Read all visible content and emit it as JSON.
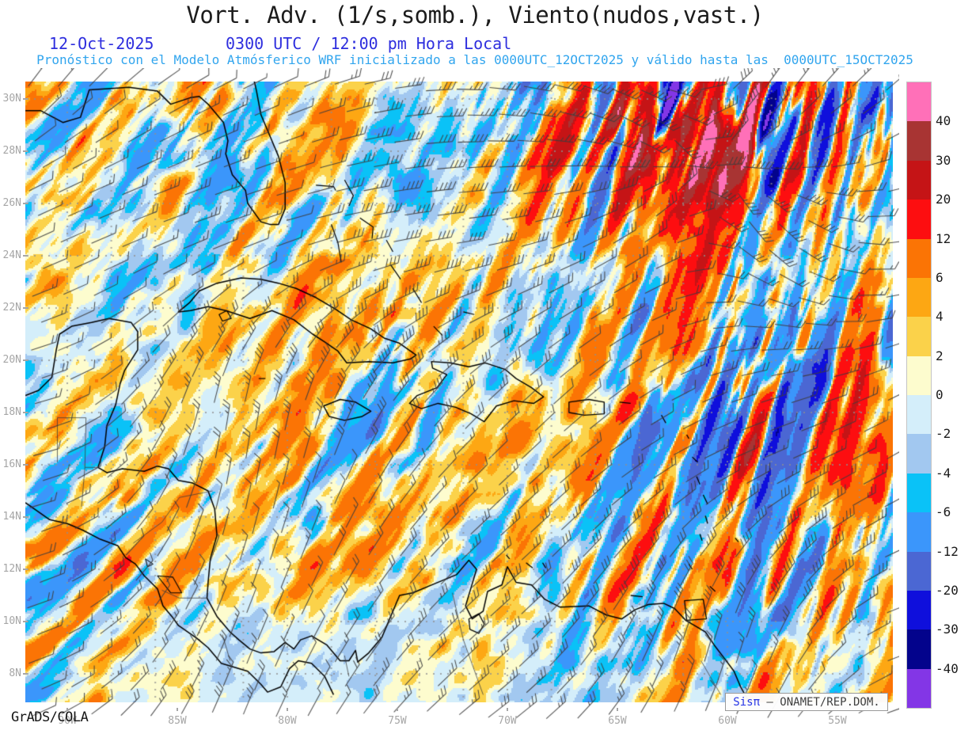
{
  "title": "Vort. Adv. (1/s,somb.), Viento(nudos,vast.)",
  "header": {
    "date": "12-Oct-2025",
    "time": "0300 UTC / 12:00 pm Hora Local",
    "subtitle": "Pronóstico con el Modelo Atmósferico WRF inicializado a las 0000UTC_12OCT2025 y válido hasta las  0000UTC_15OCT2025"
  },
  "axes": {
    "lat_ticks": [
      {
        "label": "30N",
        "lat": 30
      },
      {
        "label": "28N",
        "lat": 28
      },
      {
        "label": "26N",
        "lat": 26
      },
      {
        "label": "24N",
        "lat": 24
      },
      {
        "label": "22N",
        "lat": 22
      },
      {
        "label": "20N",
        "lat": 20
      },
      {
        "label": "18N",
        "lat": 18
      },
      {
        "label": "16N",
        "lat": 16
      },
      {
        "label": "14N",
        "lat": 14
      },
      {
        "label": "12N",
        "lat": 12
      },
      {
        "label": "10N",
        "lat": 10
      },
      {
        "label": "8N",
        "lat": 8
      }
    ],
    "lon_ticks": [
      {
        "label": "90W",
        "lon": 90
      },
      {
        "label": "85W",
        "lon": 85
      },
      {
        "label": "80W",
        "lon": 80
      },
      {
        "label": "75W",
        "lon": 75
      },
      {
        "label": "70W",
        "lon": 70
      },
      {
        "label": "65W",
        "lon": 65
      },
      {
        "label": "60W",
        "lon": 60
      },
      {
        "label": "55W",
        "lon": 55
      }
    ]
  },
  "colorbar": {
    "segments": [
      {
        "color": "#ff70b8",
        "boundary_label": "40"
      },
      {
        "color": "#a83433",
        "boundary_label": "30"
      },
      {
        "color": "#c51416",
        "boundary_label": "20"
      },
      {
        "color": "#fd0e10",
        "boundary_label": "12"
      },
      {
        "color": "#fb7405",
        "boundary_label": "6"
      },
      {
        "color": "#fda713",
        "boundary_label": "4"
      },
      {
        "color": "#fbd24a",
        "boundary_label": "2"
      },
      {
        "color": "#fdfcce",
        "boundary_label": "0"
      },
      {
        "color": "#d4eefa",
        "boundary_label": "-2"
      },
      {
        "color": "#a2c8f0",
        "boundary_label": "-4"
      },
      {
        "color": "#0ac2f7",
        "boundary_label": "-6"
      },
      {
        "color": "#3b96fb",
        "boundary_label": "-12"
      },
      {
        "color": "#4b67d3",
        "boundary_label": "-20"
      },
      {
        "color": "#0f0fdc",
        "boundary_label": "-30"
      },
      {
        "color": "#03038c",
        "boundary_label": "-40"
      },
      {
        "color": "#8336e6",
        "boundary_label": ""
      }
    ]
  },
  "footer": {
    "grads_credit": "GrADS/COLA",
    "brand": "Sisπ",
    "org": " – ONAMET/REP.DOM."
  },
  "theme": {
    "background": "#ffffff",
    "title_color": "#1c1c1c",
    "date_color": "#2e2ede",
    "subtitle_color": "#31a5ee",
    "axis_label_color": "#a6a6a6",
    "colorbar_label_color": "#1b1b1b",
    "grid_dot_color": "#8f8f8f",
    "coast_color": "#000000",
    "border_color": "#3c3c3c",
    "barb_color": "#3e3e3e",
    "brand_color": "#2433e6",
    "org_color": "#3f3f3f",
    "box_border": "#9a9a9a"
  }
}
